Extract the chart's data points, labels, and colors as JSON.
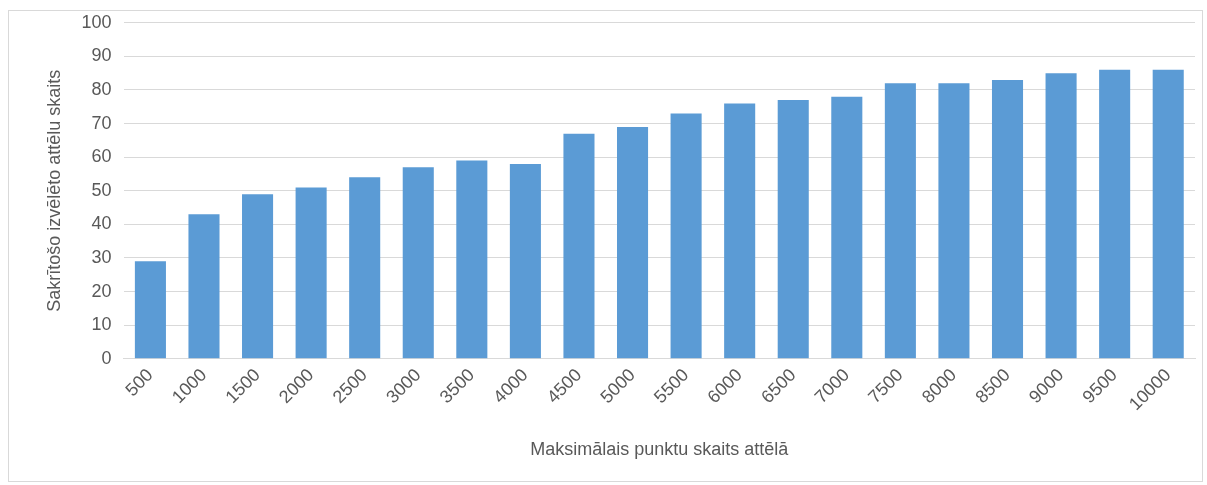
{
  "chart_data": {
    "type": "bar",
    "xlabel": "Maksimālais punktu skaits attēlā",
    "ylabel": "Sakrītošo izvēlēto attēlu skaits",
    "categories": [
      "500",
      "1000",
      "1500",
      "2000",
      "2500",
      "3000",
      "3500",
      "4000",
      "4500",
      "5000",
      "5500",
      "6000",
      "6500",
      "7000",
      "7500",
      "8000",
      "8500",
      "9000",
      "9500",
      "10000"
    ],
    "values": [
      29,
      43,
      49,
      51,
      54,
      57,
      59,
      58,
      67,
      69,
      73,
      76,
      77,
      78,
      82,
      82,
      83,
      85,
      86,
      86
    ],
    "color": "#5b9bd5",
    "ylim": [
      0,
      100
    ],
    "yticks": [
      0,
      10,
      20,
      30,
      40,
      50,
      60,
      70,
      80,
      90,
      100
    ],
    "grid": "y",
    "legend": false
  }
}
